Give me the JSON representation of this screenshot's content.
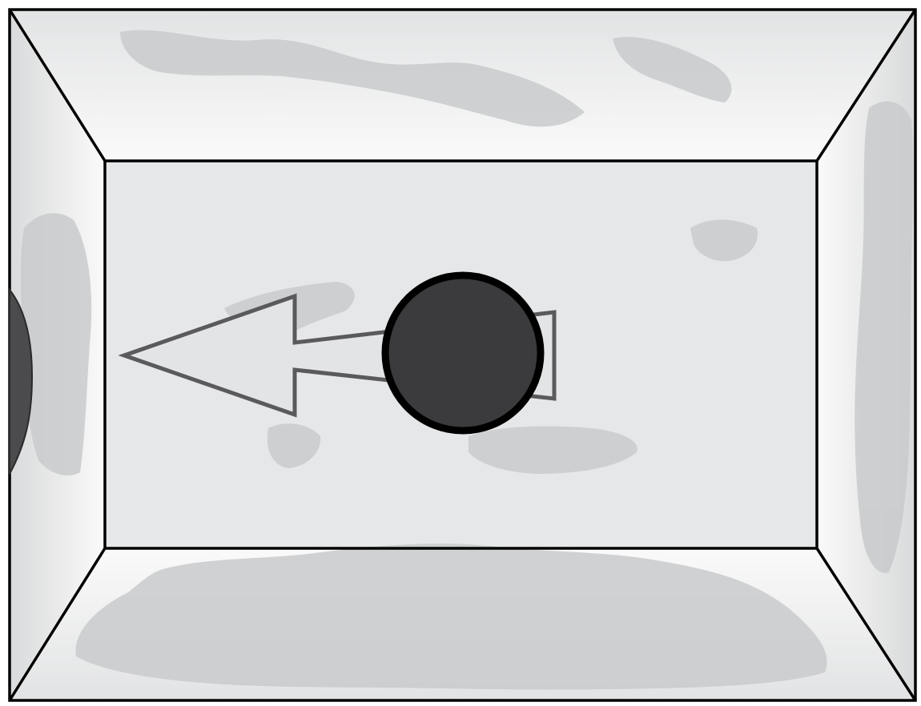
{
  "diagram": {
    "description_text": "",
    "colors": {
      "outline": "#000000",
      "wall_light": "#f3f4f5",
      "wall_mid": "#e9eaeb",
      "floor": "#e6e7e8",
      "scuff": "#c9cacb",
      "arrow_stroke": "#5a5a5c",
      "arrow_fill": "#e3e4e5",
      "ball_fill": "#3b3b3d",
      "ball_stroke": "#000000",
      "dent_fill": "#4b4b4d"
    },
    "elements": {
      "room": "box-room-top-view",
      "ball": "ball-icon",
      "arrow": "motion-arrow-left",
      "impact": "wall-dent"
    }
  }
}
